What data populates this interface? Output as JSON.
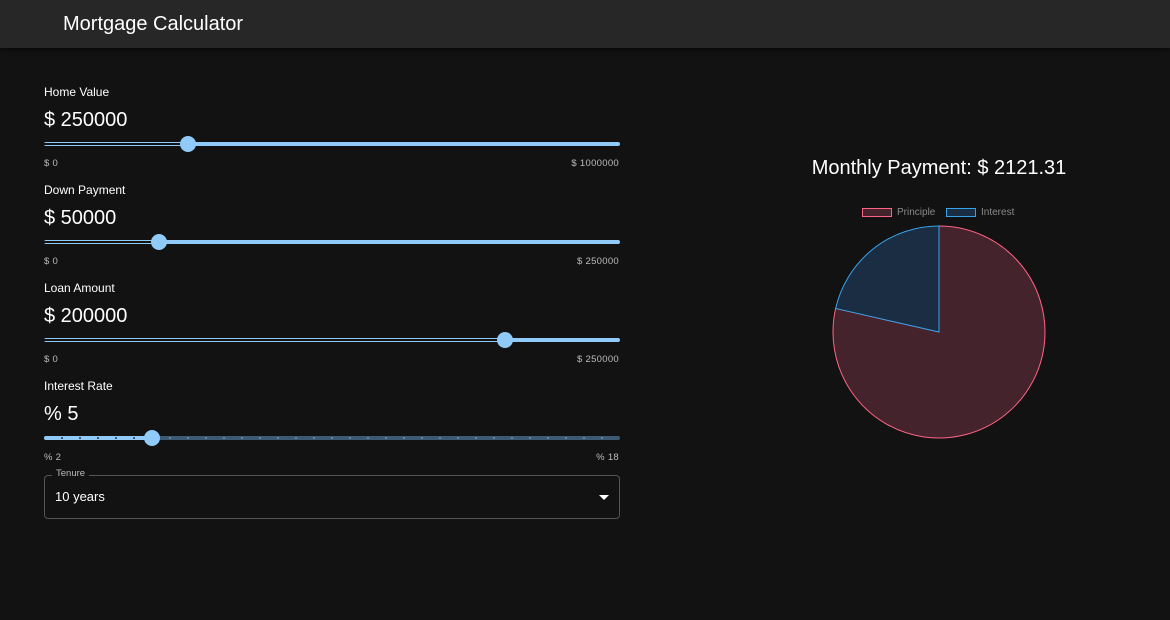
{
  "app": {
    "title": "Mortgage Calculator"
  },
  "colors": {
    "accent": "#90caf9",
    "background": "#121212",
    "appbar": "#272727",
    "principle_fill": "#45232d",
    "principle_stroke": "#ff6384",
    "interest_fill": "#1b2d42",
    "interest_stroke": "#36a2eb"
  },
  "home_value": {
    "label": "Home Value",
    "display": "$ 250000",
    "value": 250000,
    "min": 0,
    "max": 1000000,
    "min_label": "$ 0",
    "max_label": "$ 1000000"
  },
  "down_payment": {
    "label": "Down Payment",
    "display": "$ 50000",
    "value": 50000,
    "min": 0,
    "max": 250000,
    "min_label": "$ 0",
    "max_label": "$ 250000"
  },
  "loan_amount": {
    "label": "Loan Amount",
    "display": "$ 200000",
    "value": 200000,
    "min": 0,
    "max": 250000,
    "min_label": "$ 0",
    "max_label": "$ 250000"
  },
  "interest_rate": {
    "label": "Interest Rate",
    "display": "% 5",
    "value": 5,
    "min": 2,
    "max": 18,
    "step": 0.5,
    "min_label": "% 2",
    "max_label": "% 18"
  },
  "tenure": {
    "label": "Tenure",
    "selected": "10 years"
  },
  "payment": {
    "text": "Monthly Payment: $ 2121.31"
  },
  "chart_data": {
    "type": "pie",
    "labels": [
      "Principle",
      "Interest"
    ],
    "values": [
      200000,
      54557
    ],
    "legend_position": "top"
  }
}
